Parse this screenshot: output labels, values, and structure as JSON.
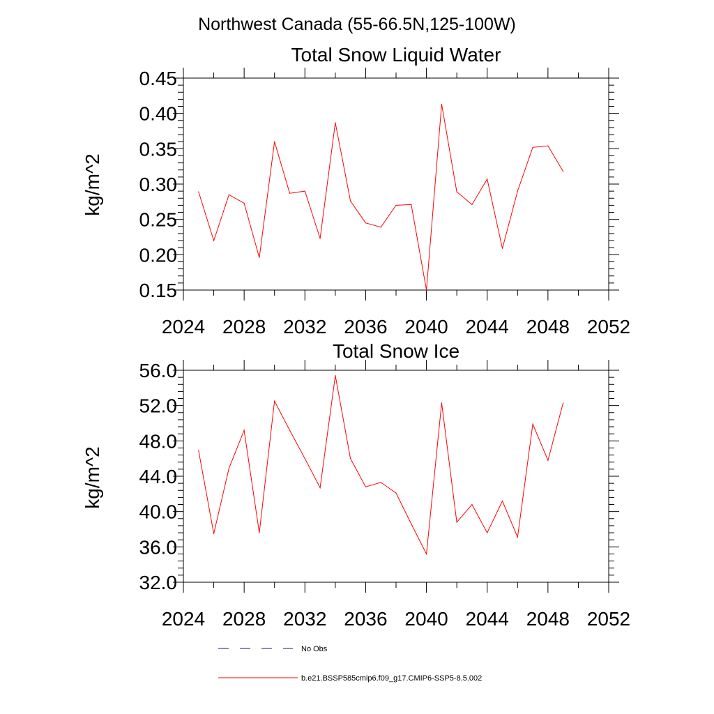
{
  "figure": {
    "suptitle": "Northwest Canada (55-66.5N,125-100W)"
  },
  "chart_data": [
    {
      "type": "line",
      "title": "Total Snow Liquid Water",
      "xlabel": "",
      "ylabel": "kg/m^2",
      "xlim": [
        2024,
        2052
      ],
      "ylim": [
        0.15,
        0.45
      ],
      "xticks": [
        2024,
        2028,
        2032,
        2036,
        2040,
        2044,
        2048,
        2052
      ],
      "yticks": [
        0.15,
        0.2,
        0.25,
        0.3,
        0.35,
        0.4,
        0.45
      ],
      "ytick_labels": [
        "0.15",
        "0.20",
        "0.25",
        "0.30",
        "0.35",
        "0.40",
        "0.45"
      ],
      "x": [
        2025,
        2026,
        2027,
        2028,
        2029,
        2030,
        2031,
        2032,
        2033,
        2034,
        2035,
        2036,
        2037,
        2038,
        2039,
        2040,
        2041,
        2042,
        2043,
        2044,
        2045,
        2046,
        2047,
        2048,
        2049
      ],
      "series": [
        {
          "name": "b.e21.BSSP585cmip6.f09_g17.CMIP6-SSP5-8.5.002",
          "color": "#ff0000",
          "values": [
            0.289,
            0.22,
            0.285,
            0.273,
            0.196,
            0.36,
            0.287,
            0.29,
            0.223,
            0.387,
            0.276,
            0.245,
            0.239,
            0.27,
            0.271,
            0.15,
            0.413,
            0.289,
            0.271,
            0.307,
            0.209,
            0.29,
            0.352,
            0.354,
            0.318
          ]
        }
      ]
    },
    {
      "type": "line",
      "title": "Total Snow Ice",
      "xlabel": "",
      "ylabel": "kg/m^2",
      "xlim": [
        2024,
        2052
      ],
      "ylim": [
        32.0,
        56.0
      ],
      "xticks": [
        2024,
        2028,
        2032,
        2036,
        2040,
        2044,
        2048,
        2052
      ],
      "yticks": [
        32,
        36,
        40,
        44,
        48,
        52,
        56
      ],
      "ytick_labels": [
        "32.0",
        "36.0",
        "40.0",
        "44.0",
        "48.0",
        "52.0",
        "56.0"
      ],
      "x": [
        2025,
        2026,
        2027,
        2028,
        2029,
        2030,
        2031,
        2032,
        2033,
        2034,
        2035,
        2036,
        2037,
        2038,
        2039,
        2040,
        2041,
        2042,
        2043,
        2044,
        2045,
        2046,
        2047,
        2048,
        2049
      ],
      "series": [
        {
          "name": "b.e21.BSSP585cmip6.f09_g17.CMIP6-SSP5-8.5.002",
          "color": "#ff0000",
          "values": [
            46.9,
            37.5,
            44.9,
            49.2,
            37.6,
            52.5,
            49.2,
            46.0,
            42.7,
            55.4,
            46.0,
            42.8,
            43.3,
            42.1,
            38.6,
            35.2,
            52.3,
            38.8,
            40.8,
            37.6,
            41.2,
            37.1,
            49.9,
            45.8,
            52.3
          ]
        }
      ]
    }
  ],
  "legend": {
    "items": [
      {
        "label": "No Obs",
        "style": "dashed",
        "color": "#1a1a66"
      },
      {
        "label": "b.e21.BSSP585cmip6.f09_g17.CMIP6-SSP5-8.5.002",
        "style": "solid",
        "color": "#ff0000"
      }
    ]
  }
}
